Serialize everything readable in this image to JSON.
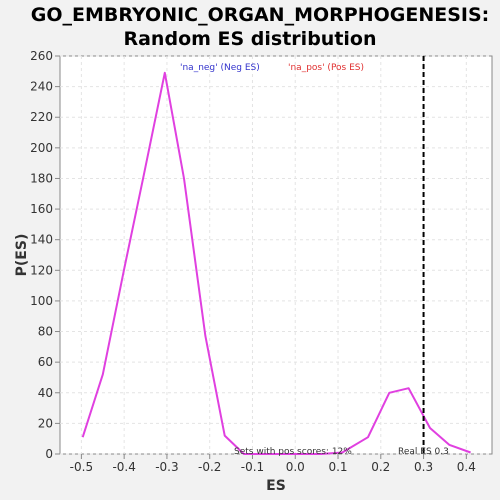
{
  "chart_data": {
    "type": "line",
    "title_line1": "GO_EMBRYONIC_ORGAN_MORPHOGENESIS:",
    "title_line2": "Random ES distribution",
    "xlabel": "ES",
    "ylabel": "P(ES)",
    "xlim": [
      -0.55,
      0.46
    ],
    "ylim": [
      0,
      260
    ],
    "xticks": [
      -0.5,
      -0.4,
      -0.3,
      -0.2,
      -0.1,
      0.0,
      0.1,
      0.2,
      0.3,
      0.4
    ],
    "xtick_labels": [
      "-0.5",
      "-0.4",
      "-0.3",
      "-0.2",
      "-0.1",
      "0.0",
      "0.1",
      "0.2",
      "0.3",
      "0.4"
    ],
    "yticks": [
      0,
      20,
      40,
      60,
      80,
      100,
      120,
      140,
      160,
      180,
      200,
      220,
      240,
      260
    ],
    "grid": true,
    "series": [
      {
        "name": "'na_neg' (Neg ES)",
        "color": "#3333cc",
        "x": [],
        "y": []
      },
      {
        "name": "'na_pos' (Pos ES)",
        "color": "#e03030",
        "x": [],
        "y": []
      }
    ],
    "distribution": {
      "color": "#e040e0",
      "x": [
        -0.497,
        -0.45,
        -0.4,
        -0.355,
        -0.305,
        -0.26,
        -0.21,
        -0.165,
        -0.12,
        -0.075,
        -0.03,
        0.015,
        0.06,
        0.11,
        0.17,
        0.22,
        0.265,
        0.315,
        0.36,
        0.41
      ],
      "y": [
        11,
        52,
        121,
        181,
        249,
        180,
        77,
        12,
        0,
        0,
        0,
        0,
        0,
        1,
        11,
        40,
        43,
        17,
        6,
        1
      ]
    },
    "real_es": {
      "value": 0.3,
      "label": "Real ES 0.3"
    },
    "note": "Sets with pos scores: 12%"
  }
}
